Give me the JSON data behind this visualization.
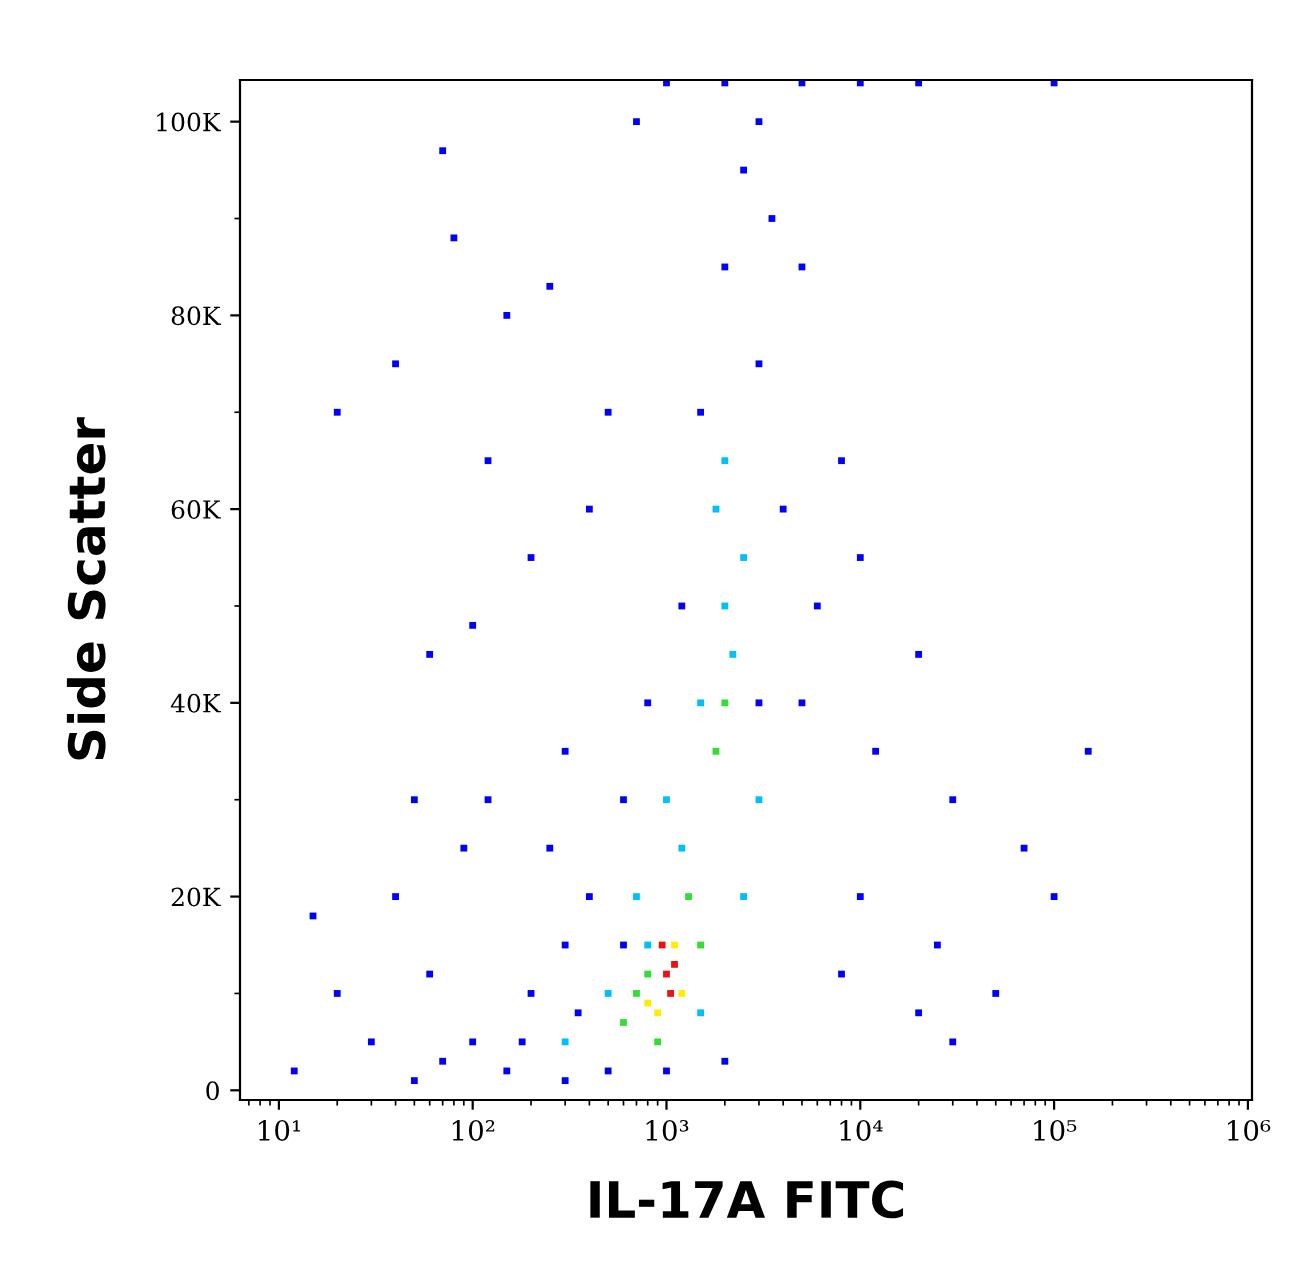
{
  "chart_data": {
    "type": "scatter",
    "xlabel": "IL-17A FITC",
    "ylabel": "Side Scatter",
    "log": "x",
    "marker": "square",
    "grid": false,
    "xlim": [
      6.3,
      1050000
    ],
    "ylim": [
      -1000,
      104300
    ],
    "xticks": [
      {
        "value": 10,
        "label": "10¹"
      },
      {
        "value": 100,
        "label": "10²"
      },
      {
        "value": 1000,
        "label": "10³"
      },
      {
        "value": 10000,
        "label": "10⁴"
      },
      {
        "value": 100000,
        "label": "10⁵"
      },
      {
        "value": 1000000,
        "label": "10⁶"
      }
    ],
    "yticks": [
      0,
      {
        "value": 20000,
        "label": "20K"
      },
      {
        "value": 40000,
        "label": "40K"
      },
      {
        "value": 60000,
        "label": "60K"
      },
      {
        "value": 80000,
        "label": "80K"
      },
      {
        "value": 100000,
        "label": "100K"
      }
    ],
    "series": [
      {
        "color": "#0000ff",
        "x": [
          12,
          15,
          20,
          30,
          40,
          50,
          60,
          70,
          80,
          100,
          120,
          150,
          200,
          250,
          300,
          400,
          500,
          700,
          1000,
          2000,
          5000,
          10000,
          20000,
          100000,
          3000,
          3500,
          5000,
          8000,
          10000,
          20000,
          30000,
          70000,
          100000,
          50000,
          20000,
          10000,
          5000,
          4000,
          3000,
          2500,
          2000,
          1500,
          1200,
          800,
          600,
          400,
          300,
          200,
          100,
          70,
          50,
          150,
          300,
          500,
          30000,
          8000,
          40,
          20,
          60,
          120,
          90,
          250,
          180,
          350,
          600,
          12000,
          6000,
          25000,
          150000,
          3000,
          1000,
          2000
        ],
        "values": [
          2000,
          18000,
          70000,
          5000,
          75000,
          30000,
          45000,
          97000,
          88000,
          48000,
          65000,
          80000,
          55000,
          83000,
          35000,
          60000,
          70000,
          100000,
          104000,
          104000,
          104000,
          104000,
          104000,
          104000,
          100000,
          90000,
          85000,
          65000,
          55000,
          45000,
          30000,
          25000,
          20000,
          10000,
          8000,
          20000,
          40000,
          60000,
          75000,
          95000,
          85000,
          70000,
          50000,
          40000,
          30000,
          20000,
          15000,
          10000,
          5000,
          3000,
          1000,
          2000,
          1000,
          2000,
          5000,
          12000,
          20000,
          10000,
          12000,
          30000,
          25000,
          25000,
          5000,
          8000,
          15000,
          35000,
          50000,
          15000,
          35000,
          40000,
          2000,
          3000
        ]
      },
      {
        "color": "#00bfff",
        "x": [
          700,
          1000,
          1500,
          2000,
          2500,
          1800,
          2200,
          1200,
          500,
          300,
          800,
          3000,
          2500,
          1500,
          2000
        ],
        "values": [
          20000,
          30000,
          40000,
          50000,
          55000,
          60000,
          45000,
          25000,
          10000,
          5000,
          15000,
          30000,
          20000,
          8000,
          65000
        ]
      },
      {
        "color": "#33dd33",
        "x": [
          700,
          800,
          1500,
          1800,
          2000,
          600,
          1300,
          900
        ],
        "values": [
          10000,
          12000,
          15000,
          35000,
          40000,
          7000,
          20000,
          5000
        ]
      },
      {
        "color": "#ffee00",
        "x": [
          900,
          1200,
          1100,
          800
        ],
        "values": [
          8000,
          10000,
          15000,
          9000
        ]
      },
      {
        "color": "#ee1111",
        "x": [
          1000,
          1100,
          1050,
          950
        ],
        "values": [
          12000,
          13000,
          10000,
          15000
        ]
      }
    ]
  }
}
